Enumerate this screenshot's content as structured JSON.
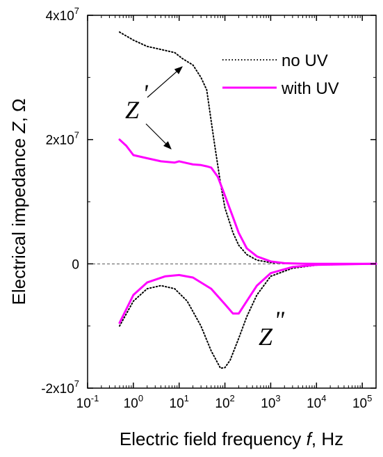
{
  "chart_data": {
    "type": "line",
    "xlabel": "Electric field frequency",
    "xlabel_var": "f",
    "xlabel_unit": ", Hz",
    "ylabel": "Electrical impedance",
    "ylabel_var": "Z",
    "ylabel_unit": ", Ω",
    "x_scale": "log",
    "xlim": [
      0.1,
      200000
    ],
    "ylim": [
      -20000000,
      40000000
    ],
    "x_ticks": [
      {
        "value": 0.1,
        "base": "10",
        "exp": "-1"
      },
      {
        "value": 1,
        "base": "10",
        "exp": "0"
      },
      {
        "value": 10,
        "base": "10",
        "exp": "1"
      },
      {
        "value": 100,
        "base": "10",
        "exp": "2"
      },
      {
        "value": 1000,
        "base": "10",
        "exp": "3"
      },
      {
        "value": 10000,
        "base": "10",
        "exp": "4"
      },
      {
        "value": 100000,
        "base": "10",
        "exp": "5"
      }
    ],
    "y_ticks": [
      {
        "value": 40000000,
        "base": "4x10",
        "exp": "7"
      },
      {
        "value": 20000000,
        "base": "2x10",
        "exp": "7"
      },
      {
        "value": 0,
        "base": "0",
        "exp": ""
      },
      {
        "value": -20000000,
        "base": "-2x10",
        "exp": "7"
      }
    ],
    "zero_line": true,
    "grid": false,
    "legend_position": "top-right",
    "series": [
      {
        "name": "no UV",
        "color": "#000000",
        "style": "dotted",
        "component": "Z'",
        "x": [
          0.5,
          1,
          2,
          4,
          8,
          12,
          20,
          30,
          40,
          50,
          60,
          80,
          100,
          150,
          200,
          300,
          500,
          1000,
          3000,
          10000,
          100000,
          200000
        ],
        "y": [
          37300000,
          36000000,
          35000000,
          34500000,
          34000000,
          33000000,
          32000000,
          30000000,
          28000000,
          23000000,
          19000000,
          13000000,
          9000000,
          5000000,
          3000000,
          1500000,
          600000,
          200000,
          50000,
          10000,
          0,
          0
        ]
      },
      {
        "name": "",
        "color": "#000000",
        "style": "dotted",
        "component": "Z\"",
        "x": [
          0.5,
          1,
          2,
          4,
          8,
          15,
          30,
          50,
          80,
          100,
          130,
          200,
          300,
          500,
          1000,
          3000,
          10000,
          100000,
          200000
        ],
        "y": [
          -10000000,
          -6000000,
          -4000000,
          -3500000,
          -4000000,
          -6000000,
          -10000000,
          -14000000,
          -16800000,
          -16700000,
          -15500000,
          -12000000,
          -8500000,
          -5000000,
          -2000000,
          -700000,
          -200000,
          -20000,
          0
        ]
      },
      {
        "name": "with UV",
        "color": "#ff00ff",
        "style": "solid",
        "component": "Z'",
        "x": [
          0.5,
          0.7,
          1,
          2,
          4,
          8,
          10,
          15,
          20,
          30,
          40,
          50,
          70,
          100,
          150,
          200,
          300,
          500,
          1000,
          2000,
          5000,
          10000,
          100000,
          200000
        ],
        "y": [
          20000000,
          19000000,
          17500000,
          17000000,
          16500000,
          16300000,
          16500000,
          16200000,
          16000000,
          15900000,
          15700000,
          15500000,
          14000000,
          11000000,
          7500000,
          5000000,
          2500000,
          1200000,
          400000,
          100000,
          30000,
          10000,
          0,
          0
        ]
      },
      {
        "name": "",
        "color": "#ff00ff",
        "style": "solid",
        "component": "Z\"",
        "x": [
          0.5,
          1,
          2,
          5,
          10,
          20,
          50,
          100,
          150,
          200,
          300,
          500,
          1000,
          3000,
          10000,
          100000,
          200000
        ],
        "y": [
          -9500000,
          -5000000,
          -3000000,
          -2000000,
          -1800000,
          -2200000,
          -4000000,
          -6500000,
          -8000000,
          -8000000,
          -6000000,
          -3500000,
          -1500000,
          -500000,
          -150000,
          -20000,
          0
        ]
      }
    ],
    "annotations": [
      {
        "label": "Z",
        "prime": "'"
      },
      {
        "label": "Z",
        "prime": "\""
      }
    ]
  }
}
